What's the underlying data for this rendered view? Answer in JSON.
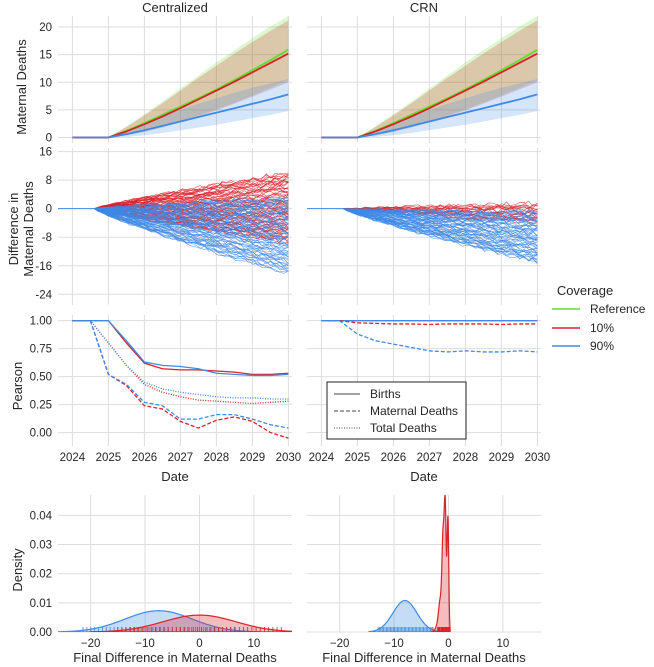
{
  "figure": {
    "column_titles": [
      "Centralized",
      "CRN"
    ],
    "legends": {
      "coverage": {
        "title": "Coverage",
        "entries": [
          {
            "label": "Reference",
            "color": "#5ee02a"
          },
          {
            "label": "10%",
            "color": "#d9222a"
          },
          {
            "label": "90%",
            "color": "#3f8ae6"
          }
        ]
      },
      "metric": {
        "entries": [
          {
            "label": "Births",
            "style": "solid"
          },
          {
            "label": "Maternal Deaths",
            "style": "dashed"
          },
          {
            "label": "Total Deaths",
            "style": "dotted"
          }
        ]
      }
    }
  },
  "chart_data": [
    {
      "id": "maternal-deaths",
      "type": "line",
      "ylabel": "Maternal Deaths",
      "x": [
        2024,
        2024.5,
        2025,
        2025.5,
        2026,
        2026.5,
        2027,
        2027.5,
        2028,
        2028.5,
        2029,
        2029.5,
        2030
      ],
      "xlim": [
        2023.6,
        2030.1
      ],
      "ylim": [
        -1,
        22
      ],
      "yticks": [
        0,
        5,
        10,
        15,
        20
      ],
      "panels": [
        {
          "column": "Centralized",
          "series": [
            {
              "name": "Reference",
              "color": "#5ee02a",
              "values": [
                0,
                0,
                0,
                1.2,
                2.6,
                4.1,
                5.6,
                7.1,
                8.7,
                10.4,
                12.2,
                14.0,
                15.9
              ],
              "lower": [
                0,
                0,
                0,
                0.5,
                1.2,
                2.0,
                3.0,
                4.0,
                5.1,
                6.3,
                7.6,
                9.0,
                10.4
              ],
              "upper": [
                0,
                0,
                0,
                2.0,
                4.2,
                6.5,
                8.9,
                11.2,
                13.6,
                15.8,
                18.0,
                20.1,
                22.0
              ]
            },
            {
              "name": "10%",
              "color": "#d9222a",
              "values": [
                0,
                0,
                0,
                1.1,
                2.4,
                3.8,
                5.3,
                6.9,
                8.5,
                10.1,
                11.8,
                13.5,
                15.2
              ],
              "lower": [
                0,
                0,
                0,
                0.4,
                1.0,
                1.8,
                2.8,
                3.8,
                4.9,
                6.1,
                7.4,
                8.7,
                10.0
              ],
              "upper": [
                0,
                0,
                0,
                1.9,
                4.0,
                6.2,
                8.5,
                10.8,
                13.0,
                15.2,
                17.3,
                19.3,
                21.2
              ]
            },
            {
              "name": "90%",
              "color": "#3f8ae6",
              "values": [
                0,
                0,
                0,
                0.6,
                1.3,
                2.1,
                2.9,
                3.7,
                4.5,
                5.3,
                6.1,
                6.9,
                7.8
              ],
              "lower": [
                0,
                0,
                0,
                0.1,
                0.4,
                0.8,
                1.3,
                1.8,
                2.3,
                2.9,
                3.5,
                4.1,
                4.8
              ],
              "upper": [
                0,
                0,
                0,
                1.3,
                2.6,
                3.8,
                5.0,
                6.1,
                7.1,
                8.1,
                9.0,
                9.8,
                10.6
              ]
            }
          ]
        },
        {
          "column": "CRN",
          "series": [
            {
              "name": "Reference",
              "color": "#5ee02a",
              "values": [
                0,
                0,
                0,
                1.2,
                2.6,
                4.1,
                5.6,
                7.1,
                8.7,
                10.4,
                12.2,
                14.0,
                15.9
              ],
              "lower": [
                0,
                0,
                0,
                0.5,
                1.2,
                2.0,
                3.0,
                4.0,
                5.1,
                6.3,
                7.6,
                9.0,
                10.4
              ],
              "upper": [
                0,
                0,
                0,
                2.0,
                4.2,
                6.5,
                8.9,
                11.2,
                13.6,
                15.8,
                18.0,
                20.1,
                22.0
              ]
            },
            {
              "name": "10%",
              "color": "#d9222a",
              "values": [
                0,
                0,
                0,
                1.1,
                2.4,
                3.8,
                5.3,
                6.9,
                8.5,
                10.1,
                11.8,
                13.5,
                15.2
              ],
              "lower": [
                0,
                0,
                0,
                0.4,
                1.0,
                1.8,
                2.8,
                3.8,
                4.9,
                6.1,
                7.4,
                8.7,
                10.0
              ],
              "upper": [
                0,
                0,
                0,
                1.9,
                4.0,
                6.2,
                8.5,
                10.8,
                13.0,
                15.2,
                17.3,
                19.3,
                21.2
              ]
            },
            {
              "name": "90%",
              "color": "#3f8ae6",
              "values": [
                0,
                0,
                0,
                0.6,
                1.3,
                2.1,
                2.9,
                3.7,
                4.5,
                5.3,
                6.1,
                6.9,
                7.8
              ],
              "lower": [
                0,
                0,
                0,
                0.1,
                0.4,
                0.8,
                1.3,
                1.8,
                2.3,
                2.9,
                3.5,
                4.1,
                4.8
              ],
              "upper": [
                0,
                0,
                0,
                1.3,
                2.6,
                3.8,
                5.0,
                6.1,
                7.1,
                8.1,
                9.0,
                9.8,
                10.6
              ]
            }
          ]
        }
      ]
    },
    {
      "id": "difference",
      "type": "line",
      "ylabel": "Difference in Maternal Deaths",
      "ylim": [
        -27,
        17
      ],
      "yticks": [
        -24,
        -16,
        -8,
        0,
        8,
        16
      ],
      "x_start": 2024.6,
      "x_end": 2030,
      "panels": [
        {
          "column": "Centralized",
          "spaghetti": [
            {
              "name": "10%",
              "color": "#d9222a",
              "count": 70,
              "drift": 0.3,
              "spread": 11
            },
            {
              "name": "90%",
              "color": "#3f8ae6",
              "count": 70,
              "drift": -7.5,
              "spread": 12
            }
          ]
        },
        {
          "column": "CRN",
          "spaghetti": [
            {
              "name": "10%",
              "color": "#d9222a",
              "count": 20,
              "drift": -1.2,
              "spread": 3
            },
            {
              "name": "90%",
              "color": "#3f8ae6",
              "count": 60,
              "drift": -8.0,
              "spread": 8
            }
          ]
        }
      ]
    },
    {
      "id": "pearson",
      "type": "line",
      "ylabel": "Pearson",
      "xlabel": "Date",
      "x": [
        2024,
        2024.5,
        2025,
        2025.5,
        2026,
        2026.5,
        2027,
        2027.5,
        2028,
        2028.5,
        2029,
        2029.5,
        2030
      ],
      "xlim": [
        2023.6,
        2030.1
      ],
      "xticks": [
        2024,
        2025,
        2026,
        2027,
        2028,
        2029,
        2030
      ],
      "ylim": [
        -0.12,
        1.05
      ],
      "yticks": [
        0.0,
        0.25,
        0.5,
        0.75,
        1.0
      ],
      "panels": [
        {
          "column": "Centralized",
          "series": [
            {
              "name": "10%",
              "metric": "Births",
              "color": "#d9222a",
              "values": [
                1,
                1,
                1,
                0.8,
                0.62,
                0.57,
                0.56,
                0.56,
                0.55,
                0.54,
                0.52,
                0.52,
                0.53
              ]
            },
            {
              "name": "90%",
              "metric": "Births",
              "color": "#3f8ae6",
              "values": [
                1,
                1,
                1,
                0.82,
                0.63,
                0.6,
                0.59,
                0.57,
                0.53,
                0.52,
                0.51,
                0.51,
                0.52
              ]
            },
            {
              "name": "10%",
              "metric": "Maternal Deaths",
              "color": "#d9222a",
              "values": [
                1,
                1,
                0.52,
                0.42,
                0.24,
                0.21,
                0.1,
                0.04,
                0.11,
                0.14,
                0.1,
                0.0,
                -0.05
              ]
            },
            {
              "name": "90%",
              "metric": "Maternal Deaths",
              "color": "#3f8ae6",
              "values": [
                1,
                1,
                0.52,
                0.43,
                0.27,
                0.24,
                0.12,
                0.12,
                0.16,
                0.16,
                0.12,
                0.07,
                0.04
              ]
            },
            {
              "name": "10%",
              "metric": "Total Deaths",
              "color": "#d9222a",
              "values": [
                1,
                1,
                0.8,
                0.6,
                0.43,
                0.36,
                0.32,
                0.29,
                0.28,
                0.27,
                0.26,
                0.27,
                0.28
              ]
            },
            {
              "name": "90%",
              "metric": "Total Deaths",
              "color": "#3f8ae6",
              "values": [
                1,
                1,
                0.8,
                0.6,
                0.45,
                0.39,
                0.36,
                0.34,
                0.32,
                0.31,
                0.31,
                0.3,
                0.3
              ]
            }
          ]
        },
        {
          "column": "CRN",
          "series": [
            {
              "name": "10%",
              "metric": "Births",
              "color": "#d9222a",
              "values": [
                1,
                1,
                1,
                1,
                1,
                1,
                1,
                1,
                1,
                1,
                1,
                1,
                1
              ]
            },
            {
              "name": "90%",
              "metric": "Births",
              "color": "#3f8ae6",
              "values": [
                1,
                1,
                1,
                1,
                1,
                1,
                1,
                1,
                1,
                1,
                1,
                1,
                1
              ]
            },
            {
              "name": "10%",
              "metric": "Maternal Deaths",
              "color": "#d9222a",
              "values": [
                1,
                1,
                0.98,
                0.975,
                0.97,
                0.97,
                0.965,
                0.97,
                0.97,
                0.97,
                0.965,
                0.97,
                0.97
              ]
            },
            {
              "name": "90%",
              "metric": "Maternal Deaths",
              "color": "#3f8ae6",
              "values": [
                1,
                1,
                0.88,
                0.82,
                0.79,
                0.76,
                0.73,
                0.72,
                0.73,
                0.72,
                0.72,
                0.73,
                0.72
              ]
            }
          ]
        }
      ]
    },
    {
      "id": "density",
      "type": "area",
      "ylabel": "Density",
      "xlabel": "Final Difference in Maternal Deaths",
      "xlim": [
        -26,
        17
      ],
      "xticks": [
        -20,
        -10,
        0,
        10
      ],
      "ylim": [
        0,
        0.047
      ],
      "yticks": [
        0.0,
        0.01,
        0.02,
        0.03,
        0.04
      ],
      "panels": [
        {
          "column": "Centralized",
          "series": [
            {
              "name": "90%",
              "color": "#3f8ae6",
              "mean": -7.5,
              "sd": 6.2,
              "peak": 0.0073
            },
            {
              "name": "10%",
              "color": "#d9222a",
              "mean": 0.0,
              "sd": 6.7,
              "peak": 0.0058
            }
          ]
        },
        {
          "column": "CRN",
          "series": [
            {
              "name": "90%",
              "color": "#3f8ae6",
              "mean": -8.0,
              "sd": 2.2,
              "peak": 0.0108
            },
            {
              "name": "10%",
              "color": "#d9222a",
              "peaks": [
                [
                  -2.0,
                  0.4,
                  0.002
                ],
                [
                  -0.6,
                  0.18,
                  0.042
                ],
                [
                  -1.0,
                  0.2,
                  0.03
                ],
                [
                  -0.1,
                  0.15,
                  0.039
                ],
                [
                  -1.5,
                  0.3,
                  0.01
                ]
              ]
            }
          ]
        }
      ]
    }
  ]
}
